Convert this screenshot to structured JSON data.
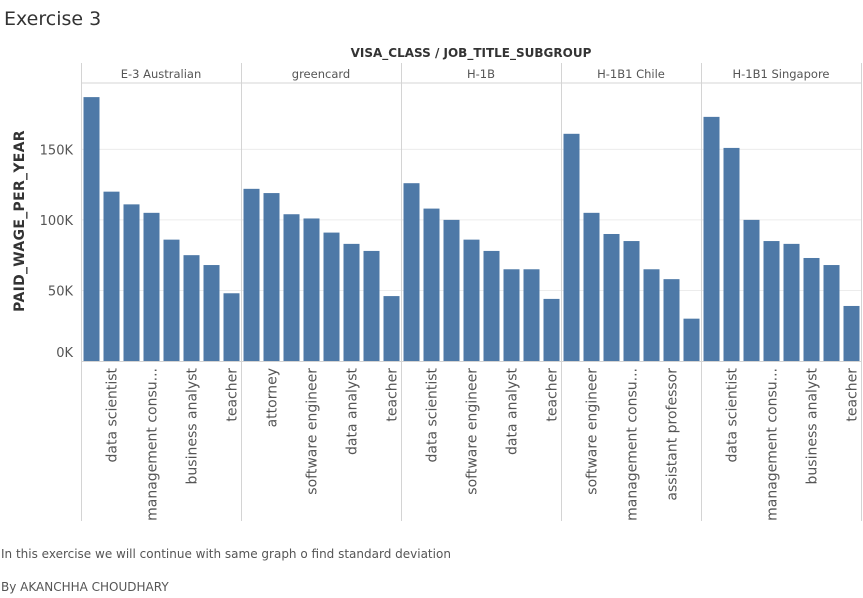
{
  "title": "Exercise 3",
  "caption": "In this exercise we will continue with same graph o find standard deviation",
  "author": "By AKANCHHA CHOUDHARY",
  "bar_color": "#4e79a7",
  "chart_data": {
    "type": "bar",
    "column_header": "VISA_CLASS / JOB_TITLE_SUBGROUP",
    "ylabel": "PAID_WAGE_PER_YEAR",
    "ylim": [
      0,
      197000
    ],
    "yticks": [
      0,
      50000,
      100000,
      150000
    ],
    "ytick_labels": [
      "0K",
      "50K",
      "100K",
      "150K"
    ],
    "grid": "horizontal",
    "panes": [
      {
        "visa_class": "E-3 Australian",
        "bars": [
          {
            "label": "",
            "value": 187000
          },
          {
            "label": "data scientist",
            "value": 120000
          },
          {
            "label": "",
            "value": 111000
          },
          {
            "label": "management consu...",
            "value": 105000
          },
          {
            "label": "",
            "value": 86000
          },
          {
            "label": "business analyst",
            "value": 75000
          },
          {
            "label": "",
            "value": 68000
          },
          {
            "label": "teacher",
            "value": 48000
          }
        ]
      },
      {
        "visa_class": "greencard",
        "bars": [
          {
            "label": "",
            "value": 122000
          },
          {
            "label": "attorney",
            "value": 119000
          },
          {
            "label": "",
            "value": 104000
          },
          {
            "label": "software engineer",
            "value": 101000
          },
          {
            "label": "",
            "value": 91000
          },
          {
            "label": "data analyst",
            "value": 83000
          },
          {
            "label": "",
            "value": 78000
          },
          {
            "label": "teacher",
            "value": 46000
          }
        ]
      },
      {
        "visa_class": "H-1B",
        "bars": [
          {
            "label": "",
            "value": 126000
          },
          {
            "label": "data scientist",
            "value": 108000
          },
          {
            "label": "",
            "value": 100000
          },
          {
            "label": "software engineer",
            "value": 86000
          },
          {
            "label": "",
            "value": 78000
          },
          {
            "label": "data analyst",
            "value": 65000
          },
          {
            "label": "",
            "value": 65000
          },
          {
            "label": "teacher",
            "value": 44000
          }
        ]
      },
      {
        "visa_class": "H-1B1 Chile",
        "bars": [
          {
            "label": "",
            "value": 161000
          },
          {
            "label": "software engineer",
            "value": 105000
          },
          {
            "label": "",
            "value": 90000
          },
          {
            "label": "management consu...",
            "value": 85000
          },
          {
            "label": "",
            "value": 65000
          },
          {
            "label": "assistant professor",
            "value": 58000
          },
          {
            "label": "",
            "value": 30000
          }
        ]
      },
      {
        "visa_class": "H-1B1 Singapore",
        "bars": [
          {
            "label": "",
            "value": 173000
          },
          {
            "label": "data scientist",
            "value": 151000
          },
          {
            "label": "",
            "value": 100000
          },
          {
            "label": "management consu...",
            "value": 85000
          },
          {
            "label": "",
            "value": 83000
          },
          {
            "label": "business analyst",
            "value": 73000
          },
          {
            "label": "",
            "value": 68000
          },
          {
            "label": "teacher",
            "value": 39000
          }
        ]
      }
    ]
  }
}
